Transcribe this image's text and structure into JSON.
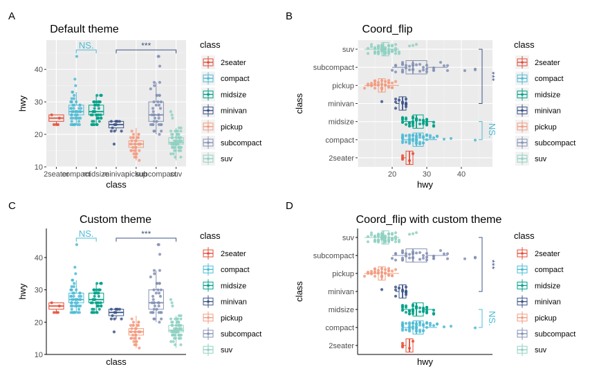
{
  "colors": {
    "2seater": "#E64B35",
    "compact": "#4DBBD5",
    "midsize": "#00A087",
    "minivan": "#3C5488",
    "pickup": "#F39B7F",
    "subcompact": "#8491B4",
    "suv": "#91D1C2"
  },
  "chart_data": [
    {
      "panel_label": "A",
      "title": "Default theme",
      "type": "box",
      "theme": "grey",
      "orientation": "vertical",
      "xlabel": "class",
      "ylabel": "hwy",
      "ylim": [
        10,
        49
      ],
      "yticks": [
        "10",
        "20",
        "30",
        "40"
      ],
      "categories": [
        "2seater",
        "compact",
        "midsize",
        "minivan",
        "pickup",
        "subcompact",
        "suv"
      ],
      "category_ticks_shown": true,
      "legend": {
        "title": "class",
        "position": "right"
      },
      "boxes": [
        {
          "class": "2seater",
          "min": 23,
          "q1": 24,
          "median": 25,
          "q3": 26,
          "max": 26
        },
        {
          "class": "compact",
          "min": 23,
          "q1": 26,
          "median": 27,
          "q3": 29,
          "max": 33
        },
        {
          "class": "midsize",
          "min": 23,
          "q1": 26,
          "median": 27,
          "q3": 29,
          "max": 32
        },
        {
          "class": "minivan",
          "min": 21,
          "q1": 22,
          "median": 23,
          "q3": 24,
          "max": 24
        },
        {
          "class": "pickup",
          "min": 12,
          "q1": 16,
          "median": 17,
          "q3": 18,
          "max": 22
        },
        {
          "class": "subcompact",
          "min": 20,
          "q1": 24,
          "median": 26,
          "q3": 30,
          "max": 36
        },
        {
          "class": "suv",
          "min": 12,
          "q1": 17,
          "median": 17.5,
          "q3": 19,
          "max": 22
        }
      ],
      "outliers": [
        {
          "class": "compact",
          "values": [
            35,
            37,
            44
          ]
        },
        {
          "class": "minivan",
          "values": [
            17
          ]
        },
        {
          "class": "subcompact",
          "values": [
            41,
            44,
            44
          ]
        },
        {
          "class": "suv",
          "values": [
            25,
            26,
            27
          ]
        }
      ],
      "annotations": [
        {
          "text": "NS.",
          "from": "compact",
          "to": "midsize",
          "y": 46,
          "color": "#4DBBD5"
        },
        {
          "text": "***",
          "from": "minivan",
          "to": "suv",
          "y": 46,
          "color": "#3C5488"
        }
      ]
    },
    {
      "panel_label": "B",
      "title": "Coord_flip",
      "type": "box",
      "theme": "grey",
      "orientation": "horizontal",
      "xlabel": "hwy",
      "ylabel": "class",
      "xlim": [
        11,
        46
      ],
      "xticks": [
        "20",
        "30",
        "40"
      ],
      "categories": [
        "2seater",
        "compact",
        "midsize",
        "minivan",
        "pickup",
        "subcompact",
        "suv"
      ],
      "category_ticks_shown": true,
      "legend": {
        "title": "class",
        "position": "right"
      },
      "annotations": [
        {
          "text": "***",
          "from": "minivan",
          "to": "suv",
          "y": 46,
          "color": "#3C5488"
        },
        {
          "text": "NS.",
          "from": "compact",
          "to": "midsize",
          "y": 46,
          "color": "#4DBBD5"
        }
      ]
    },
    {
      "panel_label": "C",
      "title": "Custom theme",
      "type": "box",
      "theme": "classic",
      "orientation": "vertical",
      "xlabel": "class",
      "ylabel": "hwy",
      "ylim": [
        10,
        49
      ],
      "yticks": [
        "10",
        "20",
        "30",
        "40"
      ],
      "categories": [
        "2seater",
        "compact",
        "midsize",
        "minivan",
        "pickup",
        "subcompact",
        "suv"
      ],
      "category_ticks_shown": false,
      "legend": {
        "title": "class",
        "position": "right"
      },
      "annotations": [
        {
          "text": "NS.",
          "from": "compact",
          "to": "midsize",
          "y": 46,
          "color": "#4DBBD5"
        },
        {
          "text": "***",
          "from": "minivan",
          "to": "suv",
          "y": 46,
          "color": "#3C5488"
        }
      ]
    },
    {
      "panel_label": "D",
      "title": "Coord_flip with custom theme",
      "type": "box",
      "theme": "classic",
      "orientation": "horizontal",
      "xlabel": "hwy",
      "ylabel": "class",
      "xlim": [
        11,
        46
      ],
      "xticks": [],
      "categories": [
        "2seater",
        "compact",
        "midsize",
        "minivan",
        "pickup",
        "subcompact",
        "suv"
      ],
      "category_ticks_shown": true,
      "legend": {
        "title": "class",
        "position": "right"
      },
      "annotations": [
        {
          "text": "***",
          "from": "minivan",
          "to": "suv",
          "y": 46,
          "color": "#3C5488"
        },
        {
          "text": "NS.",
          "from": "compact",
          "to": "midsize",
          "y": 46,
          "color": "#4DBBD5"
        }
      ]
    }
  ]
}
